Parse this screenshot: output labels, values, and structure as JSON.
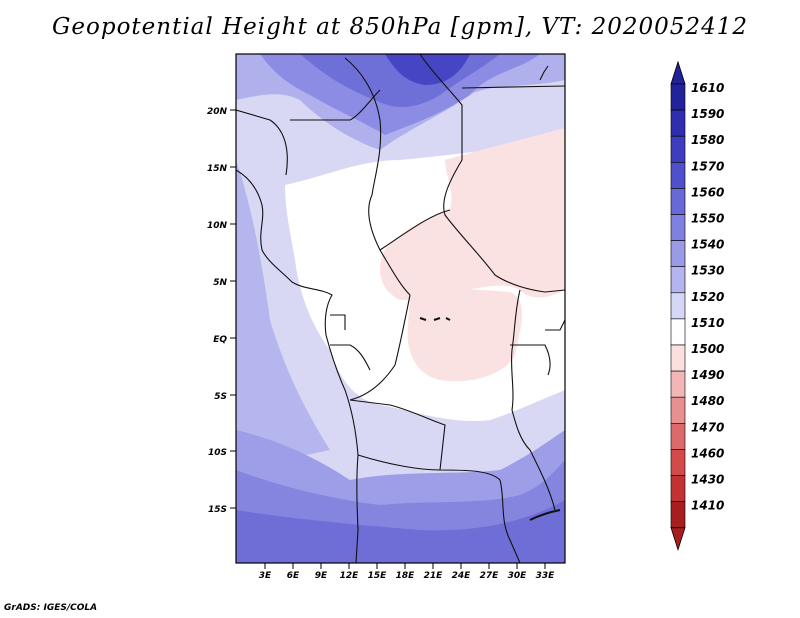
{
  "title": "Geopotential Height at 850hPa [gpm], VT: 2020052412",
  "footer": "GrADS: IGES/COLA",
  "map": {
    "lat_ticks": [
      "20N",
      "15N",
      "10N",
      "5N",
      "EQ",
      "5S",
      "10S",
      "15S"
    ],
    "lon_ticks": [
      "3E",
      "6E",
      "9E",
      "12E",
      "15E",
      "18E",
      "21E",
      "24E",
      "27E",
      "30E",
      "33E"
    ]
  },
  "colorbar": {
    "labels": [
      "1610",
      "1590",
      "1580",
      "1570",
      "1560",
      "1550",
      "1540",
      "1530",
      "1520",
      "1510",
      "1500",
      "1490",
      "1480",
      "1470",
      "1460",
      "1430",
      "1410"
    ],
    "colors": [
      "#22229a",
      "#2e2eae",
      "#3d3dbe",
      "#5050cc",
      "#6868d6",
      "#8080e0",
      "#9a9ae8",
      "#b4b4ee",
      "#d6d6f6",
      "#ffffff",
      "#fbe0e0",
      "#f2b6b6",
      "#e89090",
      "#dd6a6a",
      "#d24a4a",
      "#c23232",
      "#a81e1e"
    ]
  }
}
